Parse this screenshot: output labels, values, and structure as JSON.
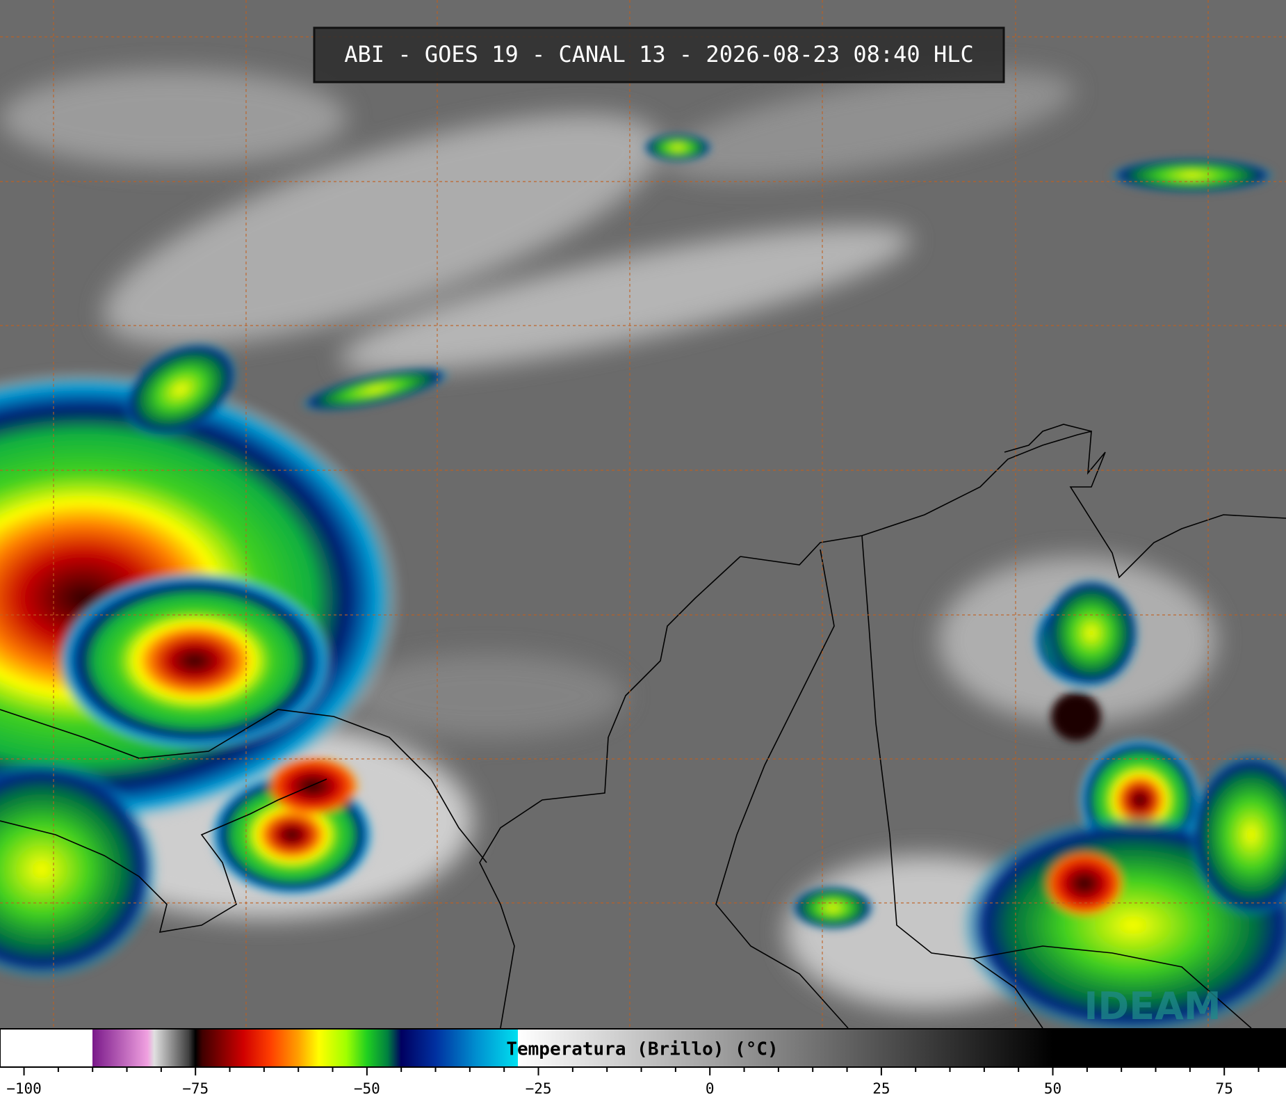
{
  "header": {
    "title": "ABI - GOES 19 - CANAL 13 - 2026-08-23 08:40 HLC"
  },
  "colorbar": {
    "label": "Temperatura (Brillo) (°C)",
    "xlim": [
      -103.5,
      84
    ],
    "xticks": [
      {
        "value": -100,
        "label": "−100"
      },
      {
        "value": -75,
        "label": "−75"
      },
      {
        "value": -50,
        "label": "−50"
      },
      {
        "value": -25,
        "label": "−25"
      },
      0,
      25,
      50,
      75
    ],
    "minor_xticks": [
      -95,
      -90,
      -85,
      -80,
      -70,
      -65,
      -60,
      -55,
      -45,
      -40,
      -35,
      -30,
      -20,
      -15,
      -10,
      -5,
      5,
      10,
      15,
      20,
      30,
      35,
      40,
      45,
      55,
      60,
      65,
      70,
      80
    ],
    "colormap": [
      [
        -103.5,
        "#ffffff"
      ],
      [
        -90,
        "#ffffff"
      ],
      [
        -90,
        "#7a1a8a"
      ],
      [
        -82,
        "#f0a0e0"
      ],
      [
        -81,
        "#e0e0e0"
      ],
      [
        -76,
        "#404040"
      ],
      [
        -75,
        "#000000"
      ],
      [
        -74,
        "#400000"
      ],
      [
        -68,
        "#d00000"
      ],
      [
        -64,
        "#ff4000"
      ],
      [
        -60,
        "#ffa000"
      ],
      [
        -57,
        "#ffff00"
      ],
      [
        -53,
        "#a0ff00"
      ],
      [
        -50,
        "#20d020"
      ],
      [
        -47,
        "#008040"
      ],
      [
        -45,
        "#000060"
      ],
      [
        -40,
        "#0030a0"
      ],
      [
        -34,
        "#0090d0"
      ],
      [
        -28,
        "#00e0f0"
      ],
      [
        -28,
        "#ffffff"
      ],
      [
        50,
        "#000000"
      ],
      [
        84,
        "#000000"
      ]
    ]
  },
  "logo": {
    "text": "IDEAM"
  }
}
